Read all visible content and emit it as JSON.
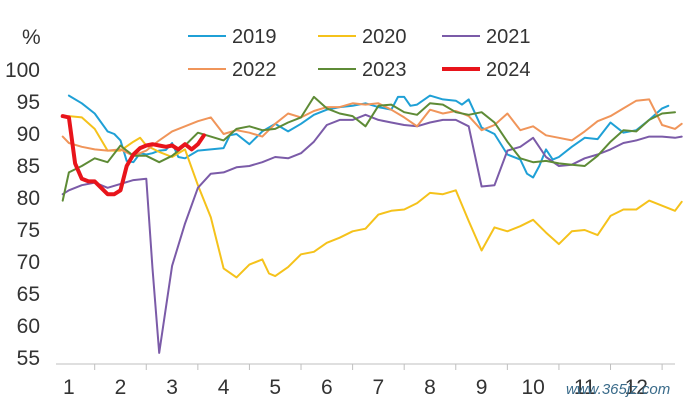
{
  "chart_data": {
    "type": "line",
    "title": "",
    "unit_label": "%",
    "xlabel": "",
    "ylabel": "%",
    "xlim": [
      0.75,
      12.75
    ],
    "ylim": [
      55,
      100
    ],
    "y_ticks": [
      "55",
      "60",
      "65",
      "70",
      "75",
      "80",
      "85",
      "90",
      "95",
      "100"
    ],
    "x_ticks": [
      "1",
      "2",
      "3",
      "4",
      "5",
      "6",
      "7",
      "8",
      "9",
      "10",
      "11",
      "12"
    ],
    "legend_position": "top",
    "series": [
      {
        "name": "2019",
        "color": "#1FA0D6",
        "width": 2,
        "points": [
          [
            1.0,
            96.0
          ],
          [
            1.25,
            94.8
          ],
          [
            1.5,
            93.2
          ],
          [
            1.75,
            90.4
          ],
          [
            1.88,
            90.0
          ],
          [
            2.0,
            89.0
          ],
          [
            2.12,
            85.8
          ],
          [
            2.25,
            85.6
          ],
          [
            2.38,
            87.0
          ],
          [
            2.5,
            86.8
          ],
          [
            2.62,
            87.0
          ],
          [
            2.75,
            87.4
          ],
          [
            2.88,
            87.5
          ],
          [
            3.0,
            88.6
          ],
          [
            3.12,
            86.4
          ],
          [
            3.25,
            86.2
          ],
          [
            3.5,
            87.4
          ],
          [
            3.75,
            87.6
          ],
          [
            4.0,
            87.8
          ],
          [
            4.12,
            89.8
          ],
          [
            4.25,
            90.0
          ],
          [
            4.5,
            88.4
          ],
          [
            4.75,
            90.4
          ],
          [
            5.0,
            91.6
          ],
          [
            5.25,
            90.4
          ],
          [
            5.5,
            91.6
          ],
          [
            5.75,
            93.0
          ],
          [
            6.0,
            93.8
          ],
          [
            6.25,
            94.2
          ],
          [
            6.5,
            94.4
          ],
          [
            6.75,
            94.8
          ],
          [
            7.0,
            94.2
          ],
          [
            7.25,
            93.8
          ],
          [
            7.38,
            95.8
          ],
          [
            7.5,
            95.8
          ],
          [
            7.62,
            94.4
          ],
          [
            7.75,
            94.6
          ],
          [
            8.0,
            96.0
          ],
          [
            8.25,
            95.4
          ],
          [
            8.5,
            95.2
          ],
          [
            8.62,
            94.6
          ],
          [
            8.75,
            95.4
          ],
          [
            9.0,
            91.0
          ],
          [
            9.25,
            90.0
          ],
          [
            9.5,
            86.8
          ],
          [
            9.75,
            86.0
          ],
          [
            9.88,
            83.8
          ],
          [
            10.0,
            83.2
          ],
          [
            10.12,
            85.0
          ],
          [
            10.25,
            87.6
          ],
          [
            10.38,
            86.0
          ],
          [
            10.5,
            86.4
          ],
          [
            10.75,
            88.0
          ],
          [
            11.0,
            89.4
          ],
          [
            11.25,
            89.2
          ],
          [
            11.5,
            91.8
          ],
          [
            11.75,
            90.2
          ],
          [
            12.0,
            90.6
          ],
          [
            12.25,
            92.2
          ],
          [
            12.5,
            94.0
          ],
          [
            12.62,
            94.4
          ]
        ]
      },
      {
        "name": "2020",
        "color": "#F5C21B",
        "width": 2,
        "points": [
          [
            1.0,
            92.8
          ],
          [
            1.25,
            92.6
          ],
          [
            1.5,
            90.8
          ],
          [
            1.75,
            87.4
          ],
          [
            2.0,
            87.4
          ],
          [
            2.25,
            88.8
          ],
          [
            2.38,
            89.4
          ],
          [
            2.5,
            88.2
          ],
          [
            2.75,
            87.2
          ],
          [
            3.0,
            86.4
          ],
          [
            3.25,
            87.6
          ],
          [
            3.5,
            82.0
          ],
          [
            3.75,
            77.0
          ],
          [
            4.0,
            69.0
          ],
          [
            4.25,
            67.6
          ],
          [
            4.5,
            69.6
          ],
          [
            4.75,
            70.4
          ],
          [
            4.88,
            68.2
          ],
          [
            5.0,
            67.8
          ],
          [
            5.25,
            69.2
          ],
          [
            5.5,
            71.2
          ],
          [
            5.75,
            71.6
          ],
          [
            6.0,
            73.0
          ],
          [
            6.25,
            73.8
          ],
          [
            6.5,
            74.8
          ],
          [
            6.75,
            75.2
          ],
          [
            7.0,
            77.4
          ],
          [
            7.25,
            78.0
          ],
          [
            7.5,
            78.2
          ],
          [
            7.75,
            79.2
          ],
          [
            8.0,
            80.8
          ],
          [
            8.25,
            80.6
          ],
          [
            8.5,
            81.2
          ],
          [
            8.75,
            76.4
          ],
          [
            9.0,
            71.8
          ],
          [
            9.25,
            75.4
          ],
          [
            9.5,
            74.8
          ],
          [
            9.75,
            75.6
          ],
          [
            10.0,
            76.6
          ],
          [
            10.25,
            74.6
          ],
          [
            10.5,
            72.8
          ],
          [
            10.75,
            74.8
          ],
          [
            11.0,
            75.0
          ],
          [
            11.25,
            74.2
          ],
          [
            11.5,
            77.2
          ],
          [
            11.75,
            78.2
          ],
          [
            12.0,
            78.2
          ],
          [
            12.25,
            79.6
          ],
          [
            12.5,
            78.8
          ],
          [
            12.75,
            78.0
          ],
          [
            12.88,
            79.4
          ]
        ]
      },
      {
        "name": "2021",
        "color": "#7B5BA8",
        "width": 2,
        "points": [
          [
            0.88,
            80.6
          ],
          [
            1.0,
            81.2
          ],
          [
            1.25,
            82.0
          ],
          [
            1.5,
            82.4
          ],
          [
            1.75,
            81.6
          ],
          [
            2.0,
            82.2
          ],
          [
            2.25,
            82.8
          ],
          [
            2.5,
            83.0
          ],
          [
            2.62,
            69.0
          ],
          [
            2.75,
            55.8
          ],
          [
            3.0,
            69.4
          ],
          [
            3.25,
            76.0
          ],
          [
            3.5,
            81.6
          ],
          [
            3.75,
            83.8
          ],
          [
            4.0,
            84.0
          ],
          [
            4.25,
            84.8
          ],
          [
            4.5,
            85.0
          ],
          [
            4.75,
            85.6
          ],
          [
            5.0,
            86.4
          ],
          [
            5.25,
            86.2
          ],
          [
            5.5,
            87.0
          ],
          [
            5.75,
            88.8
          ],
          [
            6.0,
            91.4
          ],
          [
            6.25,
            92.2
          ],
          [
            6.5,
            92.2
          ],
          [
            6.75,
            93.0
          ],
          [
            7.0,
            92.2
          ],
          [
            7.25,
            91.8
          ],
          [
            7.5,
            91.4
          ],
          [
            7.75,
            91.2
          ],
          [
            8.0,
            91.8
          ],
          [
            8.25,
            92.2
          ],
          [
            8.5,
            92.2
          ],
          [
            8.75,
            91.2
          ],
          [
            9.0,
            81.8
          ],
          [
            9.25,
            82.0
          ],
          [
            9.5,
            87.4
          ],
          [
            9.75,
            88.0
          ],
          [
            10.0,
            89.4
          ],
          [
            10.25,
            86.4
          ],
          [
            10.5,
            85.0
          ],
          [
            10.75,
            85.2
          ],
          [
            11.0,
            86.2
          ],
          [
            11.25,
            86.8
          ],
          [
            11.5,
            87.6
          ],
          [
            11.75,
            88.6
          ],
          [
            12.0,
            89.0
          ],
          [
            12.25,
            89.6
          ],
          [
            12.5,
            89.6
          ],
          [
            12.75,
            89.4
          ],
          [
            12.88,
            89.6
          ]
        ]
      },
      {
        "name": "2022",
        "color": "#F0955A",
        "width": 2,
        "points": [
          [
            0.88,
            89.6
          ],
          [
            1.0,
            88.6
          ],
          [
            1.25,
            88.0
          ],
          [
            1.5,
            87.6
          ],
          [
            1.75,
            87.4
          ],
          [
            2.0,
            87.6
          ],
          [
            2.25,
            86.6
          ],
          [
            2.5,
            87.4
          ],
          [
            2.75,
            89.0
          ],
          [
            3.0,
            90.4
          ],
          [
            3.25,
            91.2
          ],
          [
            3.5,
            92.0
          ],
          [
            3.75,
            92.6
          ],
          [
            4.0,
            90.0
          ],
          [
            4.25,
            90.6
          ],
          [
            4.5,
            90.2
          ],
          [
            4.75,
            89.6
          ],
          [
            5.0,
            91.6
          ],
          [
            5.25,
            93.2
          ],
          [
            5.5,
            92.6
          ],
          [
            5.75,
            93.6
          ],
          [
            6.0,
            94.2
          ],
          [
            6.25,
            94.2
          ],
          [
            6.5,
            94.8
          ],
          [
            6.75,
            94.6
          ],
          [
            7.0,
            94.8
          ],
          [
            7.25,
            93.8
          ],
          [
            7.5,
            92.6
          ],
          [
            7.75,
            91.2
          ],
          [
            8.0,
            93.8
          ],
          [
            8.25,
            93.2
          ],
          [
            8.5,
            93.6
          ],
          [
            8.75,
            92.8
          ],
          [
            9.0,
            90.6
          ],
          [
            9.25,
            91.4
          ],
          [
            9.5,
            93.2
          ],
          [
            9.75,
            90.6
          ],
          [
            10.0,
            91.2
          ],
          [
            10.25,
            89.8
          ],
          [
            10.5,
            89.4
          ],
          [
            10.75,
            89.0
          ],
          [
            11.0,
            90.4
          ],
          [
            11.25,
            92.0
          ],
          [
            11.5,
            92.8
          ],
          [
            11.75,
            94.0
          ],
          [
            12.0,
            95.2
          ],
          [
            12.25,
            95.4
          ],
          [
            12.5,
            91.4
          ],
          [
            12.75,
            90.8
          ],
          [
            12.88,
            91.6
          ]
        ]
      },
      {
        "name": "2023",
        "color": "#5E8B36",
        "width": 2,
        "points": [
          [
            0.88,
            79.6
          ],
          [
            1.0,
            84.0
          ],
          [
            1.25,
            85.0
          ],
          [
            1.5,
            86.2
          ],
          [
            1.75,
            85.6
          ],
          [
            2.0,
            88.2
          ],
          [
            2.12,
            87.4
          ],
          [
            2.25,
            86.6
          ],
          [
            2.5,
            86.6
          ],
          [
            2.75,
            85.6
          ],
          [
            3.0,
            86.6
          ],
          [
            3.25,
            88.2
          ],
          [
            3.5,
            90.2
          ],
          [
            3.75,
            89.6
          ],
          [
            4.0,
            89.0
          ],
          [
            4.25,
            90.8
          ],
          [
            4.5,
            91.2
          ],
          [
            4.75,
            90.6
          ],
          [
            5.0,
            90.8
          ],
          [
            5.25,
            91.8
          ],
          [
            5.5,
            92.6
          ],
          [
            5.75,
            95.8
          ],
          [
            6.0,
            94.0
          ],
          [
            6.25,
            93.2
          ],
          [
            6.5,
            92.8
          ],
          [
            6.75,
            91.2
          ],
          [
            7.0,
            94.4
          ],
          [
            7.25,
            94.6
          ],
          [
            7.5,
            93.4
          ],
          [
            7.75,
            93.0
          ],
          [
            8.0,
            94.8
          ],
          [
            8.25,
            94.6
          ],
          [
            8.5,
            93.4
          ],
          [
            8.75,
            93.0
          ],
          [
            9.0,
            93.4
          ],
          [
            9.25,
            91.8
          ],
          [
            9.5,
            88.8
          ],
          [
            9.75,
            86.2
          ],
          [
            10.0,
            85.6
          ],
          [
            10.25,
            85.8
          ],
          [
            10.5,
            85.4
          ],
          [
            10.75,
            85.2
          ],
          [
            11.0,
            85.0
          ],
          [
            11.25,
            86.6
          ],
          [
            11.5,
            88.8
          ],
          [
            11.75,
            90.6
          ],
          [
            12.0,
            90.4
          ],
          [
            12.25,
            92.2
          ],
          [
            12.5,
            93.2
          ],
          [
            12.75,
            93.4
          ]
        ]
      },
      {
        "name": "2024",
        "color": "#E8141B",
        "width": 4,
        "points": [
          [
            0.88,
            92.8
          ],
          [
            1.0,
            92.6
          ],
          [
            1.12,
            85.4
          ],
          [
            1.25,
            83.0
          ],
          [
            1.38,
            82.6
          ],
          [
            1.5,
            82.6
          ],
          [
            1.75,
            80.6
          ],
          [
            1.88,
            80.6
          ],
          [
            2.0,
            81.2
          ],
          [
            2.12,
            85.0
          ],
          [
            2.25,
            86.8
          ],
          [
            2.38,
            87.8
          ],
          [
            2.5,
            88.2
          ],
          [
            2.62,
            88.4
          ],
          [
            2.75,
            88.2
          ],
          [
            2.88,
            88.0
          ],
          [
            3.0,
            88.2
          ],
          [
            3.12,
            87.6
          ],
          [
            3.25,
            88.4
          ],
          [
            3.38,
            87.6
          ],
          [
            3.5,
            88.4
          ],
          [
            3.62,
            89.8
          ]
        ]
      }
    ]
  },
  "watermark": {
    "text": "www.365jz.com",
    "color": "#3a6b8a"
  }
}
